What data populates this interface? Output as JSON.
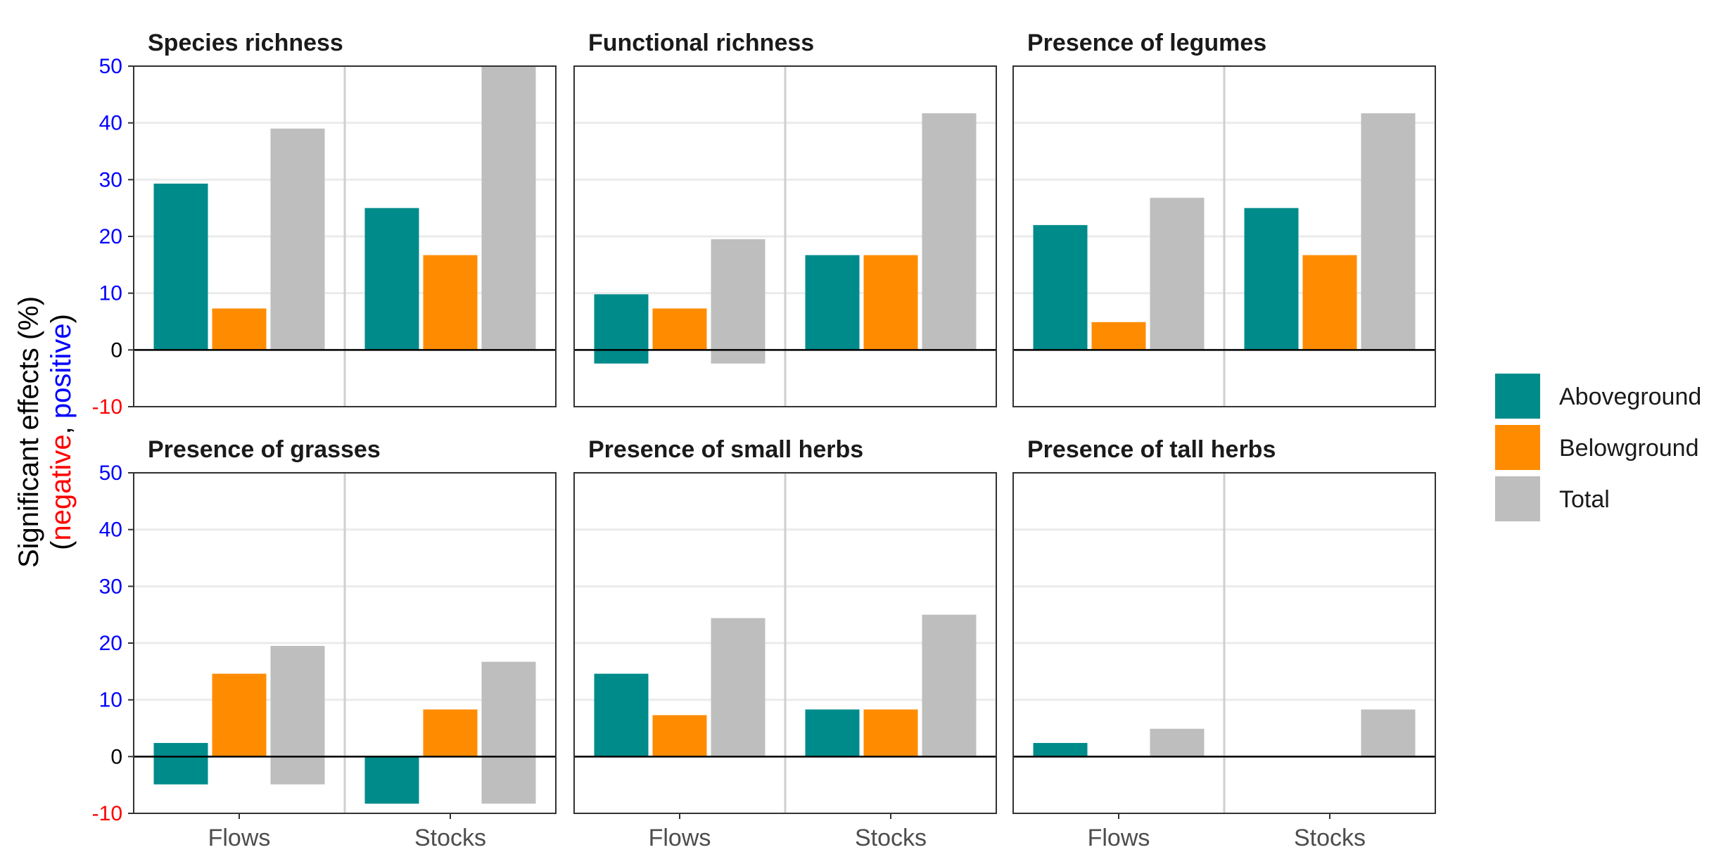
{
  "chart_data": {
    "type": "bar",
    "ylabel": {
      "line1": "Significant effects (%)",
      "open": "(",
      "negative": "negative",
      "sep": ", ",
      "positive": "positive",
      "close": ")"
    },
    "ylim": [
      -10,
      50
    ],
    "yticks": [
      "-10",
      "0",
      "10",
      "20",
      "30",
      "40",
      "50"
    ],
    "ytick_colors": {
      "negative": "#ff0000",
      "zero": "#000000",
      "positive": "#0000ff"
    },
    "categories": [
      "Flows",
      "Stocks"
    ],
    "series_names": [
      "Aboveground",
      "Belowground",
      "Total"
    ],
    "colors": {
      "Aboveground": "#008b8b",
      "Belowground": "#ff8c00",
      "Total": "#bebebe"
    },
    "legend_position": "right",
    "panels": [
      {
        "title": "Species richness",
        "series": [
          {
            "name": "Aboveground",
            "pos": [
              29.3,
              25.0
            ],
            "neg": [
              0,
              0
            ]
          },
          {
            "name": "Belowground",
            "pos": [
              7.3,
              16.7
            ],
            "neg": [
              0,
              0
            ]
          },
          {
            "name": "Total",
            "pos": [
              39.0,
              50.0
            ],
            "neg": [
              0,
              0
            ]
          }
        ]
      },
      {
        "title": "Functional richness",
        "series": [
          {
            "name": "Aboveground",
            "pos": [
              9.8,
              16.7
            ],
            "neg": [
              -2.4,
              0
            ]
          },
          {
            "name": "Belowground",
            "pos": [
              7.3,
              16.7
            ],
            "neg": [
              0,
              0
            ]
          },
          {
            "name": "Total",
            "pos": [
              19.5,
              41.7
            ],
            "neg": [
              -2.4,
              0
            ]
          }
        ]
      },
      {
        "title": "Presence of legumes",
        "series": [
          {
            "name": "Aboveground",
            "pos": [
              22.0,
              25.0
            ],
            "neg": [
              0,
              0
            ]
          },
          {
            "name": "Belowground",
            "pos": [
              4.9,
              16.7
            ],
            "neg": [
              0,
              0
            ]
          },
          {
            "name": "Total",
            "pos": [
              26.8,
              41.7
            ],
            "neg": [
              0,
              0
            ]
          }
        ]
      },
      {
        "title": "Presence of grasses",
        "series": [
          {
            "name": "Aboveground",
            "pos": [
              2.4,
              0
            ],
            "neg": [
              -4.9,
              -8.3
            ]
          },
          {
            "name": "Belowground",
            "pos": [
              14.6,
              8.3
            ],
            "neg": [
              0,
              0
            ]
          },
          {
            "name": "Total",
            "pos": [
              19.5,
              16.7
            ],
            "neg": [
              -4.9,
              -8.3
            ]
          }
        ]
      },
      {
        "title": "Presence of small herbs",
        "series": [
          {
            "name": "Aboveground",
            "pos": [
              14.6,
              8.3
            ],
            "neg": [
              0,
              0
            ]
          },
          {
            "name": "Belowground",
            "pos": [
              7.3,
              8.3
            ],
            "neg": [
              0,
              0
            ]
          },
          {
            "name": "Total",
            "pos": [
              24.4,
              25.0
            ],
            "neg": [
              0,
              0
            ]
          }
        ]
      },
      {
        "title": "Presence of tall herbs",
        "series": [
          {
            "name": "Aboveground",
            "pos": [
              2.4,
              0
            ],
            "neg": [
              0,
              0
            ]
          },
          {
            "name": "Belowground",
            "pos": [
              0,
              0
            ],
            "neg": [
              0,
              0
            ]
          },
          {
            "name": "Total",
            "pos": [
              4.9,
              8.3
            ],
            "neg": [
              0,
              0
            ]
          }
        ]
      }
    ]
  }
}
